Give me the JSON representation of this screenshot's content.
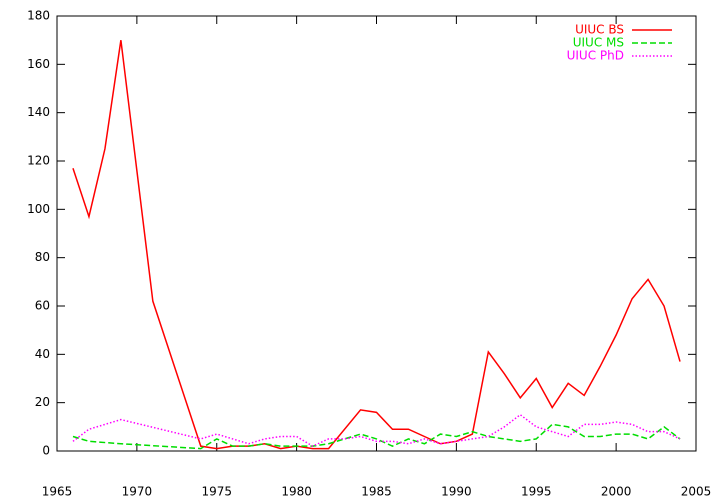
{
  "chart_data": {
    "type": "line",
    "legend": "top-right",
    "xlim": [
      1965,
      2005
    ],
    "xticks": [
      1965,
      1970,
      1975,
      1980,
      1985,
      1990,
      1995,
      2000,
      2005
    ],
    "ylim": [
      0,
      180
    ],
    "yticks": [
      0,
      20,
      40,
      60,
      80,
      100,
      120,
      140,
      160,
      180
    ],
    "series": [
      {
        "name": "UIUC BS",
        "color": "#ff0000",
        "dash": "solid",
        "x": [
          1966,
          1967,
          1968,
          1969,
          1971,
          1974,
          1975,
          1976,
          1977,
          1978,
          1979,
          1980,
          1981,
          1982,
          1984,
          1985,
          1986,
          1987,
          1988,
          1989,
          1990,
          1991,
          1992,
          1993,
          1994,
          1995,
          1996,
          1997,
          1998,
          1999,
          2000,
          2001,
          2002,
          2003,
          2004
        ],
        "values": [
          117,
          97,
          125,
          170,
          62,
          2,
          1,
          2,
          2,
          3,
          1,
          2,
          1,
          1,
          17,
          16,
          9,
          9,
          6,
          3,
          4,
          7,
          41,
          32,
          22,
          30,
          18,
          28,
          23,
          35,
          48,
          63,
          71,
          60,
          37
        ]
      },
      {
        "name": "UIUC MS",
        "color": "#00dd00",
        "dash": "dashed",
        "x": [
          1966,
          1967,
          1969,
          1974,
          1975,
          1976,
          1977,
          1978,
          1979,
          1980,
          1981,
          1982,
          1983,
          1984,
          1985,
          1986,
          1987,
          1988,
          1989,
          1990,
          1991,
          1992,
          1993,
          1994,
          1995,
          1996,
          1997,
          1998,
          1999,
          2000,
          2001,
          2002,
          2003,
          2004
        ],
        "values": [
          6,
          4,
          3,
          1,
          5,
          2,
          2,
          3,
          2,
          2,
          2,
          3,
          5,
          7,
          5,
          2,
          5,
          3,
          7,
          6,
          8,
          6,
          5,
          4,
          5,
          11,
          10,
          6,
          6,
          7,
          7,
          5,
          10,
          5
        ]
      },
      {
        "name": "UIUC PhD",
        "color": "#ff00ff",
        "dash": "dotted",
        "x": [
          1966,
          1967,
          1968,
          1969,
          1974,
          1975,
          1976,
          1977,
          1978,
          1979,
          1980,
          1981,
          1982,
          1983,
          1984,
          1985,
          1986,
          1987,
          1988,
          1989,
          1990,
          1991,
          1992,
          1993,
          1994,
          1995,
          1996,
          1997,
          1998,
          1999,
          2000,
          2001,
          2002,
          2003,
          2004
        ],
        "values": [
          4,
          9,
          11,
          13,
          5,
          7,
          5,
          3,
          5,
          6,
          6,
          2,
          5,
          5,
          6,
          4,
          4,
          3,
          5,
          3,
          4,
          5,
          6,
          10,
          15,
          10,
          8,
          6,
          11,
          11,
          12,
          11,
          8,
          8,
          5
        ]
      }
    ]
  }
}
